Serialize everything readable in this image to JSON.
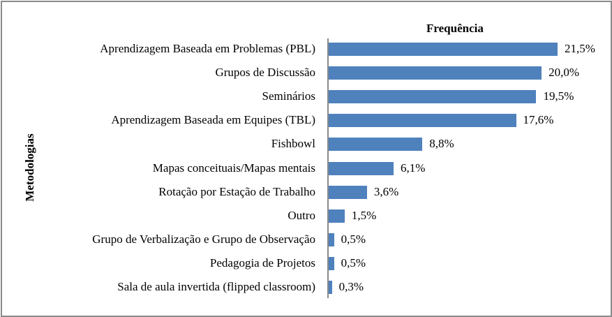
{
  "chart_data": {
    "type": "bar",
    "orientation": "horizontal",
    "title": "Frequência",
    "xlabel": "",
    "ylabel": "Metodologias",
    "bar_color": "#4f81bd",
    "categories": [
      "Aprendizagem Baseada em Problemas (PBL)",
      "Grupos de Discussão",
      "Seminários",
      "Aprendizagem Baseada em Equipes (TBL)",
      "Fishbowl",
      "Mapas conceituais/Mapas mentais",
      "Rotação por Estação de Trabalho",
      "Outro",
      "Grupo de Verbalização e Grupo de Observação",
      "Pedagogia de Projetos",
      "Sala de aula invertida (flipped classroom)"
    ],
    "values": [
      21.5,
      20.0,
      19.5,
      17.6,
      8.8,
      6.1,
      3.6,
      1.5,
      0.5,
      0.5,
      0.3
    ],
    "value_labels": [
      "21,5%",
      "20,0%",
      "19,5%",
      "17,6%",
      "8,8%",
      "6,1%",
      "3,6%",
      "1,5%",
      "0,5%",
      "0,5%",
      "0,3%"
    ],
    "grid": false,
    "legend": null
  }
}
